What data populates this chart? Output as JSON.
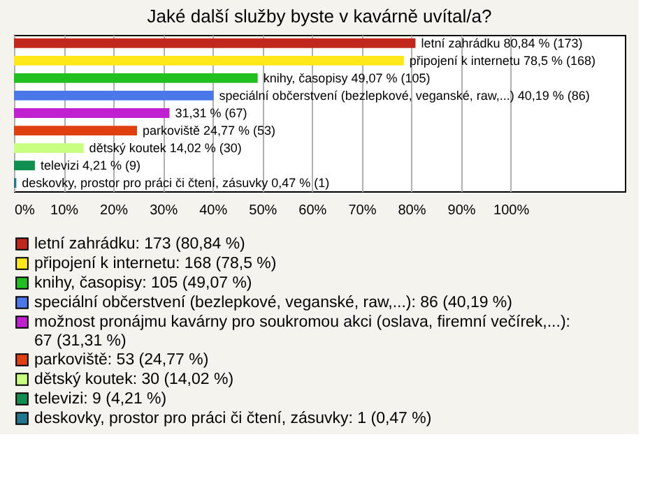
{
  "chart_data": {
    "type": "bar",
    "orientation": "horizontal",
    "stacked": true,
    "title": "Jaké další služby byste v kavárně uvítal/a?",
    "categories": [
      null,
      null,
      null,
      null,
      null,
      null,
      null,
      null,
      null
    ],
    "series": [
      {
        "name": "letní zahrádku: 173 (80,84 %)",
        "color": "#c0281c",
        "values": [
          80.84,
          null,
          null,
          null,
          null,
          null,
          null,
          null,
          null
        ],
        "value_labels": [
          "letní zahrádku 80,84 % (173)",
          null,
          null,
          null,
          null,
          null,
          null,
          null,
          null
        ]
      },
      {
        "name": "připojení k internetu: 168 (78,5 %)",
        "color": "#ffe81a",
        "values": [
          null,
          78.5,
          null,
          null,
          null,
          null,
          null,
          null,
          null
        ],
        "value_labels": [
          null,
          "připojení k internetu 78,5 % (168)",
          null,
          null,
          null,
          null,
          null,
          null,
          null
        ]
      },
      {
        "name": "knihy, časopisy: 105 (49,07 %)",
        "color": "#20c020",
        "values": [
          null,
          null,
          49.07,
          null,
          null,
          null,
          null,
          null,
          null
        ],
        "value_labels": [
          null,
          null,
          "knihy, časopisy 49,07 % (105)",
          null,
          null,
          null,
          null,
          null,
          null
        ]
      },
      {
        "name": "speciální občerstvení (bezlepkové, veganské, raw,...): 86 (40,19 %)",
        "color": "#4a78e8",
        "values": [
          null,
          null,
          null,
          40.19,
          null,
          null,
          null,
          null,
          null
        ],
        "value_labels": [
          null,
          null,
          null,
          "speciální občerstvení (bezlepkové, veganské, raw,...) 40,19 % (86)",
          null,
          null,
          null,
          null,
          null
        ]
      },
      {
        "name": "možnost pronájmu kavárny pro soukromou akci (oslava, firemní večírek,...): 67 (31,31 %)",
        "color": "#c020d0",
        "values": [
          null,
          null,
          null,
          null,
          31.31,
          null,
          null,
          null,
          null
        ],
        "value_labels": [
          null,
          null,
          null,
          null,
          "31,31 % (67)",
          null,
          null,
          null,
          null
        ]
      },
      {
        "name": "parkoviště: 53 (24,77 %)",
        "color": "#e04010",
        "values": [
          null,
          null,
          null,
          null,
          null,
          24.77,
          null,
          null,
          null
        ],
        "value_labels": [
          null,
          null,
          null,
          null,
          null,
          "parkoviště 24,77 % (53)",
          null,
          null,
          null
        ]
      },
      {
        "name": "dětský koutek: 30 (14,02 %)",
        "color": "#c8ff80",
        "values": [
          null,
          null,
          null,
          null,
          null,
          null,
          14.02,
          null,
          null
        ],
        "value_labels": [
          null,
          null,
          null,
          null,
          null,
          null,
          "dětský koutek 14,02 % (30)",
          null,
          null
        ]
      },
      {
        "name": "televizi: 9 (4,21 %)",
        "color": "#109050",
        "values": [
          null,
          null,
          null,
          null,
          null,
          null,
          null,
          4.21,
          null
        ],
        "value_labels": [
          null,
          null,
          null,
          null,
          null,
          null,
          null,
          "televizi 4,21 % (9)",
          null
        ]
      },
      {
        "name": "deskovky, prostor pro práci či čtení, zásuvky: 1 (0,47 %)",
        "color": "#207890",
        "values": [
          null,
          null,
          null,
          null,
          null,
          null,
          null,
          null,
          0.47
        ],
        "value_labels": [
          null,
          null,
          null,
          null,
          null,
          null,
          null,
          null,
          "deskovky, prostor pro práci či čtení, zásuvky 0,47 % (1)"
        ]
      }
    ],
    "xlim": [
      0,
      123
    ],
    "xticks": [
      {
        "value": 0,
        "label": "0%"
      },
      {
        "value": 10,
        "label": "10%"
      },
      {
        "value": 20,
        "label": "20%"
      },
      {
        "value": 30,
        "label": "30%"
      },
      {
        "value": 40,
        "label": "40%"
      },
      {
        "value": 50,
        "label": "50%"
      },
      {
        "value": 60,
        "label": "60%"
      },
      {
        "value": 70,
        "label": "70%"
      },
      {
        "value": 80,
        "label": "80%"
      },
      {
        "value": 90,
        "label": "90%"
      },
      {
        "value": 100,
        "label": "100%"
      }
    ],
    "grid": "x",
    "legend": "bottom",
    "tick_labels": "x"
  }
}
